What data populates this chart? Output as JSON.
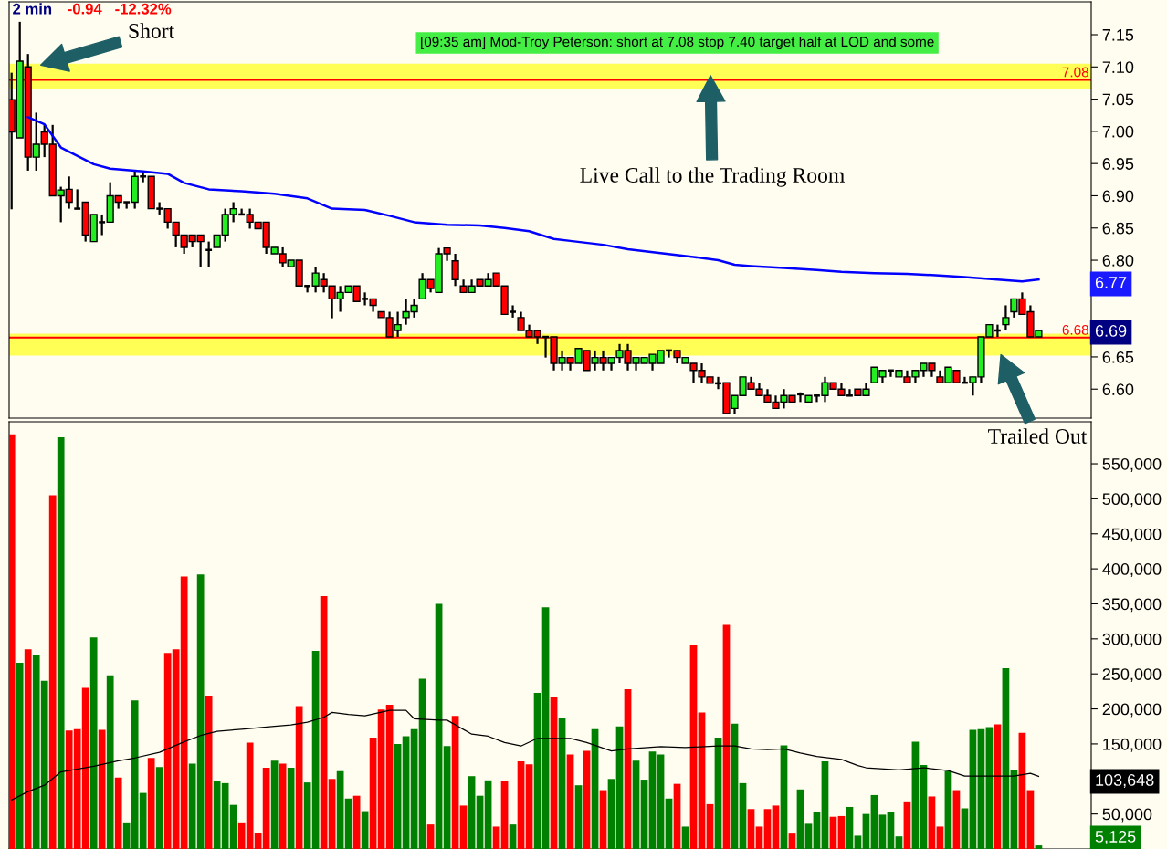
{
  "chart_data": [
    {
      "type": "candlestick",
      "title": "2 min",
      "subtitle": "-0.94   -12.32%",
      "categories": [
        null,
        null,
        null,
        null,
        null,
        null,
        null,
        null,
        null,
        null,
        null,
        null,
        null,
        null,
        null,
        null,
        null,
        null,
        null,
        null,
        null,
        null,
        null,
        null,
        null,
        null,
        null,
        null,
        null,
        null,
        null,
        null,
        null,
        null,
        null,
        null,
        null,
        null,
        null,
        null,
        null,
        null,
        null,
        null,
        null,
        null,
        null,
        null,
        null,
        null,
        null,
        null,
        null,
        null,
        null,
        null,
        null,
        null,
        null,
        null,
        null,
        null,
        null,
        null,
        null,
        null,
        null,
        null,
        null,
        null,
        null,
        null,
        null,
        null,
        null,
        null,
        null,
        null,
        null,
        null,
        null,
        null,
        null,
        null,
        null,
        null,
        null,
        null,
        null,
        null,
        null,
        null,
        null,
        null,
        null,
        null,
        null,
        null,
        null,
        null,
        null,
        null,
        null,
        null,
        null,
        null,
        null,
        null,
        null,
        null,
        null,
        null,
        null,
        null,
        null,
        null,
        null,
        null,
        null,
        null,
        null,
        null,
        null,
        null,
        null,
        null
      ],
      "ohlc": [
        [
          7.049,
          7.091,
          6.879,
          6.999
        ],
        [
          6.99,
          7.17,
          6.99,
          7.109
        ],
        [
          7.1,
          7.12,
          6.939,
          6.96
        ],
        [
          6.96,
          7.029,
          6.939,
          6.98
        ],
        [
          6.999,
          7.01,
          6.96,
          6.98
        ],
        [
          6.98,
          7.01,
          6.9,
          6.9
        ],
        [
          6.9,
          6.914,
          6.859,
          6.909
        ],
        [
          6.91,
          6.93,
          6.88,
          6.89
        ],
        [
          6.88,
          6.91,
          6.88,
          6.88
        ],
        [
          6.89,
          6.89,
          6.829,
          6.839
        ],
        [
          6.829,
          6.871,
          6.829,
          6.871
        ],
        [
          6.859,
          6.871,
          6.839,
          6.859
        ],
        [
          6.859,
          6.921,
          6.859,
          6.9
        ],
        [
          6.9,
          6.9,
          6.88,
          6.89
        ],
        [
          6.89,
          6.89,
          6.88,
          6.89
        ],
        [
          6.89,
          6.939,
          6.88,
          6.93
        ],
        [
          6.93,
          6.939,
          6.921,
          6.93
        ],
        [
          6.93,
          6.93,
          6.88,
          6.88
        ],
        [
          6.88,
          6.89,
          6.871,
          6.88
        ],
        [
          6.88,
          6.88,
          6.849,
          6.859
        ],
        [
          6.859,
          6.859,
          6.82,
          6.839
        ],
        [
          6.839,
          6.839,
          6.81,
          6.82
        ],
        [
          6.839,
          6.839,
          6.82,
          6.829
        ],
        [
          6.839,
          6.839,
          6.79,
          6.829
        ],
        [
          6.816,
          6.829,
          6.79,
          6.816
        ],
        [
          6.82,
          6.839,
          6.82,
          6.839
        ],
        [
          6.839,
          6.88,
          6.829,
          6.871
        ],
        [
          6.871,
          6.89,
          6.859,
          6.88
        ],
        [
          6.871,
          6.88,
          6.871,
          6.871
        ],
        [
          6.871,
          6.88,
          6.849,
          6.859
        ],
        [
          6.859,
          6.859,
          6.849,
          6.849
        ],
        [
          6.859,
          6.859,
          6.81,
          6.82
        ],
        [
          6.81,
          6.82,
          6.81,
          6.82
        ],
        [
          6.81,
          6.82,
          6.79,
          6.796
        ],
        [
          6.79,
          6.8,
          6.79,
          6.8
        ],
        [
          6.8,
          6.8,
          6.76,
          6.76
        ],
        [
          6.76,
          6.76,
          6.75,
          6.76
        ],
        [
          6.76,
          6.79,
          6.75,
          6.78
        ],
        [
          6.77,
          6.78,
          6.75,
          6.76
        ],
        [
          6.76,
          6.76,
          6.71,
          6.74
        ],
        [
          6.74,
          6.76,
          6.72,
          6.75
        ],
        [
          6.75,
          6.76,
          6.75,
          6.76
        ],
        [
          6.76,
          6.76,
          6.736,
          6.736
        ],
        [
          6.74,
          6.75,
          6.73,
          6.74
        ],
        [
          6.74,
          6.74,
          6.72,
          6.73
        ],
        [
          6.72,
          6.72,
          6.711,
          6.711
        ],
        [
          6.711,
          6.72,
          6.681,
          6.681
        ],
        [
          6.691,
          6.72,
          6.681,
          6.7
        ],
        [
          6.711,
          6.74,
          6.7,
          6.72
        ],
        [
          6.72,
          6.74,
          6.711,
          6.73
        ],
        [
          6.74,
          6.78,
          6.74,
          6.77
        ],
        [
          6.77,
          6.77,
          6.75,
          6.756
        ],
        [
          6.75,
          6.819,
          6.75,
          6.81
        ],
        [
          6.819,
          6.819,
          6.799,
          6.81
        ],
        [
          6.799,
          6.81,
          6.76,
          6.77
        ],
        [
          6.76,
          6.77,
          6.75,
          6.75
        ],
        [
          6.75,
          6.77,
          6.75,
          6.76
        ],
        [
          6.77,
          6.77,
          6.76,
          6.76
        ],
        [
          6.76,
          6.78,
          6.76,
          6.77
        ],
        [
          6.78,
          6.78,
          6.76,
          6.76
        ],
        [
          6.76,
          6.76,
          6.716,
          6.716
        ],
        [
          6.72,
          6.73,
          6.711,
          6.72
        ],
        [
          6.711,
          6.72,
          6.691,
          6.691
        ],
        [
          6.691,
          6.7,
          6.681,
          6.681
        ],
        [
          6.691,
          6.691,
          6.67,
          6.681
        ],
        [
          6.681,
          6.681,
          6.649,
          6.681
        ],
        [
          6.681,
          6.681,
          6.629,
          6.64
        ],
        [
          6.64,
          6.66,
          6.629,
          6.649
        ],
        [
          6.649,
          6.649,
          6.629,
          6.64
        ],
        [
          6.64,
          6.663,
          6.64,
          6.663
        ],
        [
          6.66,
          6.66,
          6.629,
          6.629
        ],
        [
          6.64,
          6.66,
          6.629,
          6.649
        ],
        [
          6.649,
          6.66,
          6.629,
          6.64
        ],
        [
          6.64,
          6.649,
          6.629,
          6.649
        ],
        [
          6.649,
          6.67,
          6.64,
          6.66
        ],
        [
          6.66,
          6.67,
          6.629,
          6.64
        ],
        [
          6.64,
          6.649,
          6.629,
          6.649
        ],
        [
          6.64,
          6.649,
          6.64,
          6.649
        ],
        [
          6.64,
          6.654,
          6.629,
          6.654
        ],
        [
          6.64,
          6.66,
          6.64,
          6.66
        ],
        [
          6.66,
          6.66,
          6.649,
          6.66
        ],
        [
          6.66,
          6.66,
          6.64,
          6.649
        ],
        [
          6.64,
          6.649,
          6.64,
          6.649
        ],
        [
          6.64,
          6.64,
          6.609,
          6.629
        ],
        [
          6.629,
          6.64,
          6.609,
          6.619
        ],
        [
          6.619,
          6.619,
          6.609,
          6.609
        ],
        [
          6.609,
          6.619,
          6.6,
          6.609
        ],
        [
          6.61,
          6.61,
          6.562,
          6.562
        ],
        [
          6.57,
          6.59,
          6.561,
          6.59
        ],
        [
          6.59,
          6.619,
          6.59,
          6.619
        ],
        [
          6.61,
          6.619,
          6.6,
          6.6
        ],
        [
          6.6,
          6.61,
          6.59,
          6.59
        ],
        [
          6.59,
          6.6,
          6.58,
          6.58
        ],
        [
          6.58,
          6.59,
          6.57,
          6.57
        ],
        [
          6.58,
          6.6,
          6.57,
          6.59
        ],
        [
          6.59,
          6.59,
          6.58,
          6.58
        ],
        [
          6.592,
          6.595,
          6.58,
          6.592
        ],
        [
          6.58,
          6.59,
          6.58,
          6.59
        ],
        [
          6.59,
          6.59,
          6.58,
          6.59
        ],
        [
          6.59,
          6.619,
          6.58,
          6.61
        ],
        [
          6.61,
          6.61,
          6.6,
          6.6
        ],
        [
          6.6,
          6.61,
          6.59,
          6.59
        ],
        [
          6.59,
          6.6,
          6.59,
          6.59
        ],
        [
          6.6,
          6.6,
          6.59,
          6.59
        ],
        [
          6.59,
          6.61,
          6.59,
          6.6
        ],
        [
          6.61,
          6.634,
          6.61,
          6.634
        ],
        [
          6.619,
          6.629,
          6.61,
          6.629
        ],
        [
          6.629,
          6.629,
          6.619,
          6.629
        ],
        [
          6.619,
          6.629,
          6.619,
          6.629
        ],
        [
          6.619,
          6.629,
          6.61,
          6.61
        ],
        [
          6.619,
          6.629,
          6.61,
          6.629
        ],
        [
          6.629,
          6.64,
          6.619,
          6.64
        ],
        [
          6.64,
          6.64,
          6.619,
          6.629
        ],
        [
          6.619,
          6.629,
          6.61,
          6.61
        ],
        [
          6.61,
          6.634,
          6.61,
          6.634
        ],
        [
          6.629,
          6.629,
          6.61,
          6.61
        ],
        [
          6.61,
          6.619,
          6.61,
          6.61
        ],
        [
          6.61,
          6.619,
          6.59,
          6.619
        ],
        [
          6.619,
          6.681,
          6.61,
          6.681
        ],
        [
          6.681,
          6.7,
          6.681,
          6.7
        ],
        [
          6.691,
          6.7,
          6.681,
          6.691
        ],
        [
          6.7,
          6.73,
          6.691,
          6.711
        ],
        [
          6.72,
          6.74,
          6.711,
          6.74
        ],
        [
          6.74,
          6.75,
          6.716,
          6.716
        ],
        [
          6.72,
          6.73,
          6.681,
          6.681
        ],
        [
          6.681,
          6.691,
          6.681,
          6.691
        ]
      ],
      "series": [
        {
          "type": "line",
          "color": "#0000ff",
          "values": [
            null,
            null,
            7.022,
            null,
            7.011,
            null,
            6.975,
            null,
            null,
            null,
            6.949,
            null,
            6.942,
            null,
            null,
            null,
            6.938,
            null,
            null,
            6.934,
            null,
            6.92,
            null,
            null,
            6.91,
            null,
            null,
            null,
            6.907,
            null,
            null,
            null,
            6.903,
            null,
            null,
            null,
            6.896,
            null,
            null,
            6.88,
            null,
            null,
            null,
            6.878,
            null,
            null,
            6.869,
            null,
            null,
            6.859,
            null,
            null,
            null,
            6.855,
            null,
            null,
            null,
            6.854,
            null,
            null,
            6.85,
            null,
            null,
            6.845,
            null,
            null,
            6.833,
            null,
            6.83,
            null,
            null,
            null,
            6.824,
            null,
            null,
            6.817,
            null,
            null,
            null,
            6.811,
            null,
            null,
            null,
            6.805,
            null,
            null,
            6.8,
            null,
            6.793,
            null,
            6.791,
            null,
            null,
            null,
            6.788,
            null,
            null,
            null,
            6.785,
            null,
            null,
            6.782,
            null,
            null,
            null,
            6.78,
            null,
            null,
            null,
            6.779,
            null,
            null,
            6.777,
            null,
            null,
            null,
            6.774,
            null,
            null,
            null,
            6.77,
            null,
            null,
            6.767,
            null,
            6.77
          ]
        }
      ],
      "ylim": [
        6.555,
        7.201
      ],
      "yticks": [
        {
          "value": 6.6,
          "label": "6.60"
        },
        {
          "value": 6.65,
          "label": "6.65"
        },
        {
          "value": 6.8,
          "label": "6.80"
        },
        {
          "value": 6.85,
          "label": "6.85"
        },
        {
          "value": 6.9,
          "label": "6.90"
        },
        {
          "value": 6.95,
          "label": "6.95"
        },
        {
          "value": 7.0,
          "label": "7.00"
        },
        {
          "value": 7.05,
          "label": "7.05"
        },
        {
          "value": 7.1,
          "label": "7.10"
        },
        {
          "value": 7.15,
          "label": "7.15"
        }
      ],
      "ref_lines": [
        {
          "axis": "y",
          "value": 7.08,
          "label": "7.08",
          "color": "#ff0000"
        },
        {
          "axis": "y",
          "value": 6.68,
          "label": "6.68",
          "color": "#ff0000"
        }
      ],
      "bands": [
        {
          "axis": "y",
          "from": 7.066,
          "to": 7.105,
          "color": "#ffff55"
        },
        {
          "axis": "y",
          "from": 6.652,
          "to": 6.686,
          "color": "#ffff55"
        }
      ],
      "annotations": [
        "Short",
        "[09:35 am] Mod-Troy Peterson: short at 7.08 stop 7.40 target half at LOD and some",
        "Live Call to the Trading Room",
        "Trailed Out",
        "6.77",
        "6.69"
      ],
      "grid": false,
      "legend": false,
      "tick_labels": "y"
    },
    {
      "type": "bar",
      "categories": [
        null,
        null,
        null,
        null,
        null,
        null,
        null,
        null,
        null,
        null,
        null,
        null,
        null,
        null,
        null,
        null,
        null,
        null,
        null,
        null,
        null,
        null,
        null,
        null,
        null,
        null,
        null,
        null,
        null,
        null,
        null,
        null,
        null,
        null,
        null,
        null,
        null,
        null,
        null,
        null,
        null,
        null,
        null,
        null,
        null,
        null,
        null,
        null,
        null,
        null,
        null,
        null,
        null,
        null,
        null,
        null,
        null,
        null,
        null,
        null,
        null,
        null,
        null,
        null,
        null,
        null,
        null,
        null,
        null,
        null,
        null,
        null,
        null,
        null,
        null,
        null,
        null,
        null,
        null,
        null,
        null,
        null,
        null,
        null,
        null,
        null,
        null,
        null,
        null,
        null,
        null,
        null,
        null,
        null,
        null,
        null,
        null,
        null,
        null,
        null,
        null,
        null,
        null,
        null,
        null,
        null,
        null,
        null,
        null,
        null,
        null,
        null,
        null,
        null,
        null,
        null,
        null,
        null,
        null,
        null,
        null,
        null,
        null,
        null,
        null,
        null
      ],
      "values": [
        592000,
        266000,
        285000,
        277000,
        240000,
        505000,
        588000,
        169000,
        171000,
        230000,
        302000,
        170000,
        248000,
        102000,
        38000,
        212000,
        80000,
        130000,
        117000,
        280000,
        285000,
        389000,
        122000,
        392000,
        219000,
        97000,
        94000,
        63000,
        38000,
        152000,
        23000,
        116000,
        126000,
        122000,
        116000,
        204000,
        95000,
        283000,
        361000,
        100000,
        111000,
        72000,
        76000,
        54000,
        159000,
        199000,
        206000,
        150000,
        161000,
        171000,
        243000,
        35000,
        350000,
        147000,
        190000,
        62000,
        104000,
        76000,
        98000,
        32000,
        97000,
        35000,
        125000,
        121000,
        223000,
        345000,
        217000,
        187000,
        135000,
        91000,
        140000,
        171000,
        84000,
        100000,
        175000,
        228000,
        126000,
        99000,
        139000,
        135000,
        72000,
        93000,
        32000,
        292000,
        195000,
        64000,
        159000,
        320000,
        179000,
        94000,
        57000,
        32000,
        57000,
        62000,
        148000,
        22000,
        85000,
        36000,
        53000,
        125000,
        46000,
        47000,
        60000,
        19000,
        50000,
        77000,
        49000,
        53000,
        18000,
        68000,
        153000,
        120000,
        75000,
        32000,
        111000,
        84000,
        58000,
        170000,
        171000,
        174000,
        178000,
        258000,
        112000,
        166000,
        84000,
        5125
      ],
      "colors": [
        "#ff0000",
        "#008000",
        "#ff0000",
        "#008000",
        "#008000",
        "#ff0000",
        "#008000",
        "#ff0000",
        "#ff0000",
        "#ff0000",
        "#008000",
        "#ff0000",
        "#008000",
        "#ff0000",
        "#008000",
        "#008000",
        "#008000",
        "#ff0000",
        "#008000",
        "#ff0000",
        "#ff0000",
        "#ff0000",
        "#008000",
        "#008000",
        "#ff0000",
        "#008000",
        "#008000",
        "#008000",
        "#ff0000",
        "#ff0000",
        "#ff0000",
        "#ff0000",
        "#008000",
        "#ff0000",
        "#008000",
        "#ff0000",
        "#008000",
        "#008000",
        "#ff0000",
        "#ff0000",
        "#008000",
        "#008000",
        "#ff0000",
        "#008000",
        "#ff0000",
        "#ff0000",
        "#ff0000",
        "#008000",
        "#008000",
        "#008000",
        "#008000",
        "#ff0000",
        "#008000",
        "#008000",
        "#ff0000",
        "#ff0000",
        "#008000",
        "#008000",
        "#008000",
        "#ff0000",
        "#ff0000",
        "#008000",
        "#ff0000",
        "#ff0000",
        "#008000",
        "#008000",
        "#ff0000",
        "#008000",
        "#ff0000",
        "#008000",
        "#ff0000",
        "#008000",
        "#ff0000",
        "#008000",
        "#008000",
        "#ff0000",
        "#008000",
        "#008000",
        "#008000",
        "#008000",
        "#008000",
        "#ff0000",
        "#008000",
        "#ff0000",
        "#ff0000",
        "#ff0000",
        "#008000",
        "#ff0000",
        "#008000",
        "#008000",
        "#ff0000",
        "#ff0000",
        "#ff0000",
        "#ff0000",
        "#008000",
        "#ff0000",
        "#008000",
        "#008000",
        "#008000",
        "#008000",
        "#ff0000",
        "#ff0000",
        "#008000",
        "#008000",
        "#008000",
        "#008000",
        "#008000",
        "#008000",
        "#008000",
        "#ff0000",
        "#008000",
        "#008000",
        "#ff0000",
        "#ff0000",
        "#008000",
        "#ff0000",
        "#008000",
        "#008000",
        "#008000",
        "#008000",
        "#ff0000",
        "#008000",
        "#008000",
        "#ff0000",
        "#ff0000",
        "#008000"
      ],
      "series": [
        {
          "type": "line",
          "color": "#000000",
          "values": [
            70000,
            null,
            82000,
            null,
            91000,
            null,
            110000,
            null,
            null,
            null,
            118000,
            null,
            null,
            126000,
            null,
            130000,
            null,
            null,
            138000,
            null,
            null,
            153000,
            null,
            162000,
            null,
            168000,
            null,
            null,
            171000,
            null,
            null,
            null,
            175000,
            null,
            177000,
            null,
            181000,
            null,
            188000,
            195000,
            null,
            192000,
            null,
            190000,
            null,
            null,
            198000,
            null,
            198000,
            186000,
            null,
            null,
            184000,
            184000,
            null,
            null,
            164000,
            null,
            161000,
            null,
            152000,
            null,
            147000,
            null,
            158000,
            null,
            null,
            null,
            158000,
            null,
            152000,
            null,
            null,
            140000,
            null,
            143000,
            null,
            null,
            null,
            146000,
            null,
            null,
            145000,
            null,
            null,
            null,
            147000,
            null,
            147000,
            null,
            143000,
            null,
            142000,
            null,
            143000,
            null,
            137000,
            null,
            132000,
            null,
            null,
            128000,
            null,
            119000,
            116000,
            null,
            null,
            null,
            113000,
            null,
            null,
            116000,
            null,
            null,
            112000,
            null,
            104000,
            null,
            null,
            104000,
            null,
            null,
            104000,
            null,
            108000,
            103648
          ]
        }
      ],
      "ylim": [
        0,
        610000
      ],
      "yticks": [
        {
          "value": 50000,
          "label": "50,000"
        },
        {
          "value": 150000,
          "label": "150,000"
        },
        {
          "value": 200000,
          "label": "200,000"
        },
        {
          "value": 250000,
          "label": "250,000"
        },
        {
          "value": 300000,
          "label": "300,000"
        },
        {
          "value": 350000,
          "label": "350,000"
        },
        {
          "value": 400000,
          "label": "400,000"
        },
        {
          "value": 450000,
          "label": "450,000"
        },
        {
          "value": 500000,
          "label": "500,000"
        },
        {
          "value": 550000,
          "label": "550,000"
        }
      ],
      "annotations": [
        "103,648",
        "5,125"
      ],
      "grid": false,
      "legend": false,
      "tick_labels": "y"
    }
  ]
}
